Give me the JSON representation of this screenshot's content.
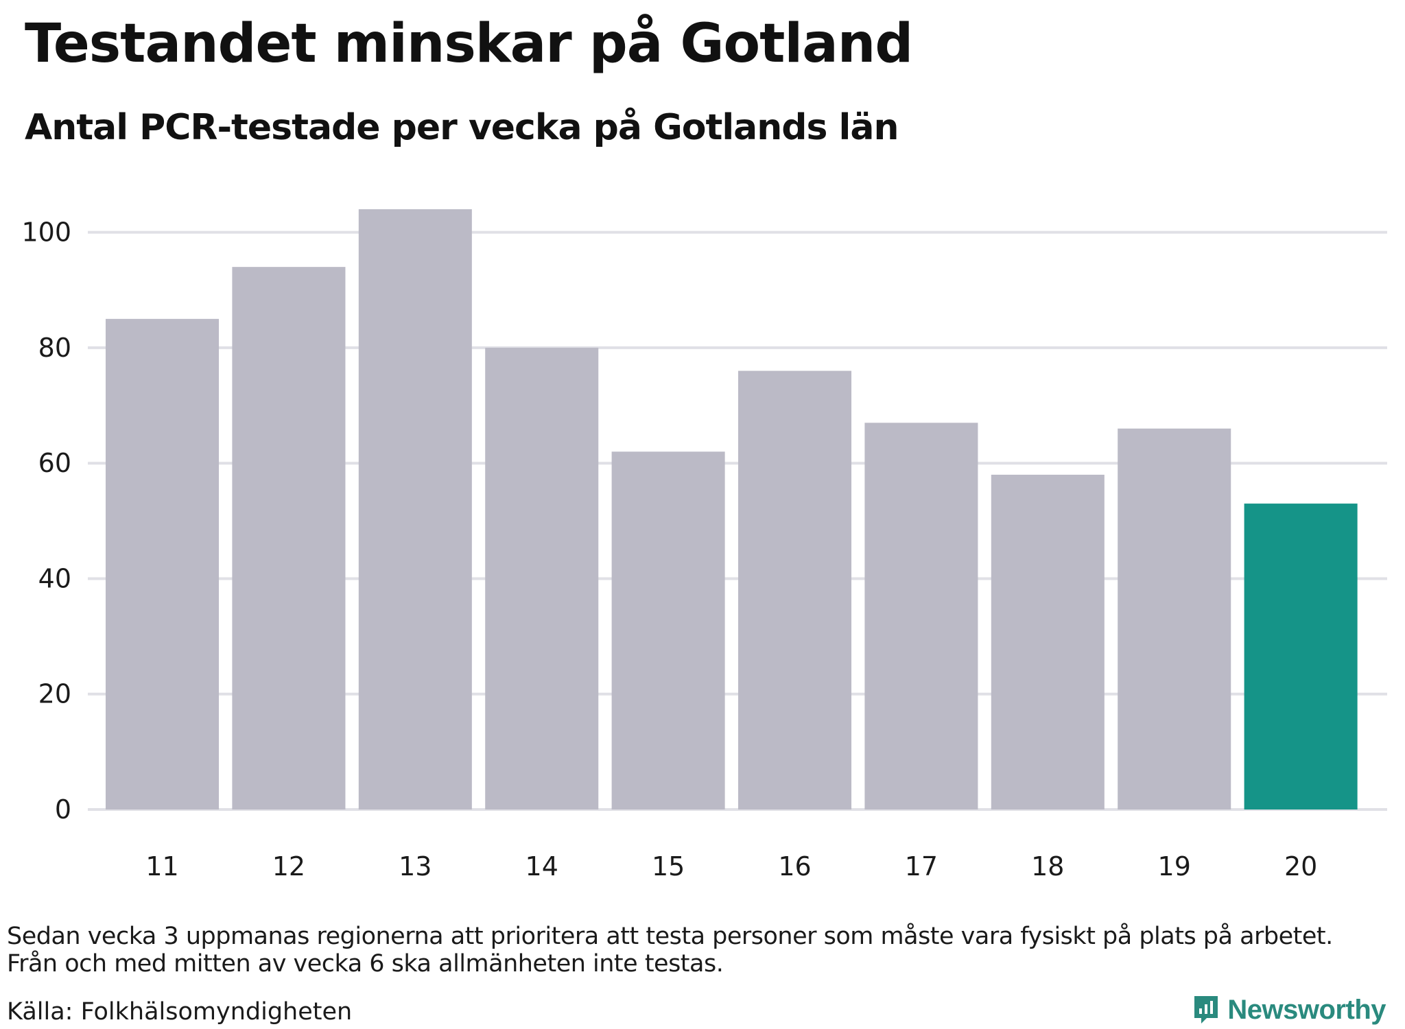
{
  "title": "Testandet minskar på Gotland",
  "subtitle": "Antal PCR-testade per vecka på Gotlands län",
  "footnote": [
    "Sedan vecka 3 uppmanas regionerna att prioritera att testa personer som måste vara fysiskt på plats på arbetet.",
    "Från och med mitten av vecka 6 ska allmänheten inte testas."
  ],
  "source": "Källa: Folkhälsomyndigheten",
  "logo_text": "Newsworthy",
  "colors": {
    "bar": "#bbbac6",
    "highlight": "#159488",
    "grid": "#e0e0e6",
    "brand": "#2a8a7e"
  },
  "chart_data": {
    "type": "bar",
    "categories": [
      "11",
      "12",
      "13",
      "14",
      "15",
      "16",
      "17",
      "18",
      "19",
      "20"
    ],
    "values": [
      85,
      94,
      104,
      80,
      62,
      76,
      67,
      58,
      66,
      53
    ],
    "highlight_index": 9,
    "title": "Testandet minskar på Gotland",
    "subtitle": "Antal PCR-testade per vecka på Gotlands län",
    "xlabel": "",
    "ylabel": "",
    "ylim": [
      0,
      104
    ],
    "yticks": [
      0,
      20,
      40,
      60,
      80,
      100
    ],
    "grid": true,
    "legend": "none"
  }
}
